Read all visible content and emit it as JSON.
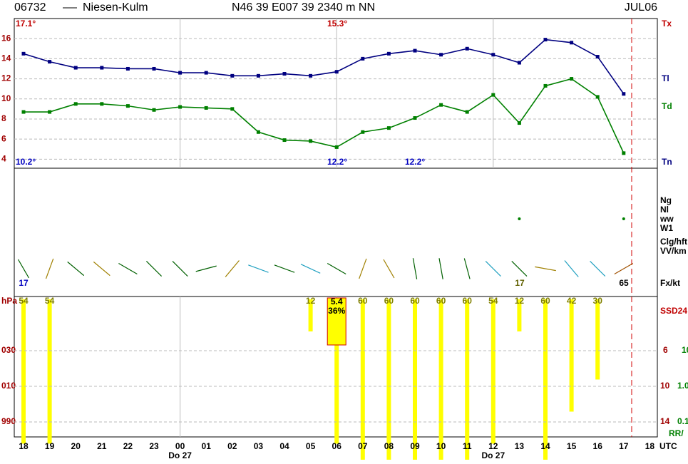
{
  "header": {
    "station": "06732",
    "name": "Niesen-Kulm",
    "location": "N46 39 E007 39 2340 m NN",
    "date": "JUL06"
  },
  "chart_data": [
    {
      "type": "line",
      "categories": [
        "18",
        "19",
        "20",
        "21",
        "22",
        "23",
        "00",
        "01",
        "02",
        "03",
        "04",
        "05",
        "06",
        "07",
        "08",
        "09",
        "10",
        "11",
        "12",
        "13",
        "14",
        "15",
        "16",
        "17",
        "18"
      ],
      "series": [
        {
          "name": "Tl",
          "color": "#000080",
          "values": [
            14.5,
            13.7,
            13.1,
            13.1,
            13.0,
            13.0,
            12.6,
            12.6,
            12.3,
            12.3,
            12.5,
            12.3,
            12.7,
            14.0,
            14.5,
            14.8,
            14.4,
            15.0,
            14.4,
            13.6,
            15.9,
            15.6,
            14.2,
            10.5,
            null
          ]
        },
        {
          "name": "Td",
          "color": "#008000",
          "values": [
            8.7,
            8.7,
            9.5,
            9.5,
            9.3,
            8.9,
            9.2,
            9.1,
            9.0,
            6.7,
            5.9,
            5.8,
            5.2,
            6.7,
            7.1,
            8.1,
            9.4,
            8.7,
            10.4,
            7.6,
            11.3,
            12.0,
            10.2,
            4.6,
            null
          ]
        }
      ],
      "ylim": [
        3.1,
        18
      ],
      "yticks": [
        4,
        6,
        8,
        10,
        12,
        14,
        16
      ],
      "grid": true,
      "day_labels": [
        "Do 27",
        "Do 27"
      ],
      "time_zone": "UTC",
      "extreme_labels": [
        "Tx",
        "Tn"
      ],
      "annotations": [
        "17.1°",
        "15.3°",
        "10.2°",
        "12.2°",
        "12.2°"
      ]
    },
    {
      "type": "bar",
      "name": "SSD24",
      "color": "#ffff00",
      "values": [
        54,
        54,
        null,
        null,
        null,
        null,
        null,
        null,
        null,
        null,
        null,
        12,
        54,
        60,
        60,
        60,
        60,
        60,
        54,
        12,
        60,
        42,
        30,
        null,
        null
      ],
      "ylim": [
        0,
        60
      ],
      "box_labels": [
        "5.4",
        "36%"
      ],
      "left_labels": [
        "hPa",
        "030",
        "010",
        "990"
      ],
      "right_labels": [
        "6",
        "10",
        "14",
        "10",
        "1.0",
        "0.1",
        "RR/"
      ]
    }
  ],
  "wind": {
    "labels": [
      "Ng",
      "Nl",
      "ww",
      "W1",
      "Clg/hft",
      "VV/km",
      "Fx/kt"
    ],
    "gusts": [
      "17",
      "17",
      "65"
    ]
  }
}
